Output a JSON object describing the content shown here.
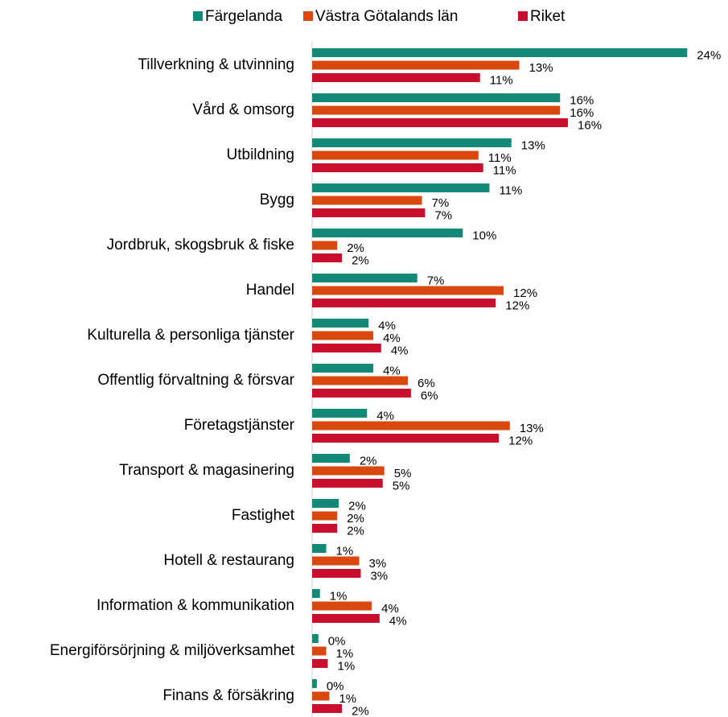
{
  "chart_data": {
    "type": "bar",
    "orientation": "horizontal",
    "categories": [
      "Tillverkning & utvinning",
      "Vård & omsorg",
      "Utbildning",
      "Bygg",
      "Jordbruk, skogsbruk & fiske",
      "Handel",
      "Kulturella & personliga tjänster",
      "Offentlig förvaltning & försvar",
      "Företagstjänster",
      "Transport & magasinering",
      "Fastighet",
      "Hotell & restaurang",
      "Information & kommunikation",
      "Energiförsörjning & miljöverksamhet",
      "Finans & försäkring"
    ],
    "series": [
      {
        "name": "Färgelanda",
        "color": "#138a77",
        "values": [
          23.9,
          15.8,
          12.7,
          11.3,
          9.6,
          6.7,
          3.6,
          3.9,
          3.5,
          2.4,
          1.7,
          0.9,
          0.5,
          0.4,
          0.3
        ],
        "value_labels": [
          "24%",
          "16%",
          "13%",
          "11%",
          "10%",
          "7%",
          "4%",
          "4%",
          "4%",
          "2%",
          "2%",
          "1%",
          "1%",
          "0%",
          "0%"
        ]
      },
      {
        "name": "Västra Götalands län",
        "color": "#d9480f",
        "values": [
          13.2,
          15.8,
          10.6,
          7.0,
          1.6,
          12.2,
          3.9,
          6.1,
          12.6,
          4.6,
          1.6,
          3.0,
          3.8,
          0.9,
          1.1
        ],
        "value_labels": [
          "13%",
          "16%",
          "11%",
          "7%",
          "2%",
          "12%",
          "4%",
          "6%",
          "13%",
          "5%",
          "2%",
          "3%",
          "4%",
          "1%",
          "1%"
        ]
      },
      {
        "name": "Riket",
        "color": "#c8102e",
        "values": [
          10.7,
          16.3,
          10.9,
          7.2,
          1.9,
          11.7,
          4.4,
          6.3,
          11.9,
          4.5,
          1.6,
          3.1,
          4.3,
          1.0,
          1.9
        ],
        "value_labels": [
          "11%",
          "16%",
          "11%",
          "7%",
          "2%",
          "12%",
          "4%",
          "6%",
          "12%",
          "5%",
          "2%",
          "3%",
          "4%",
          "1%",
          "2%"
        ]
      }
    ],
    "xlim": [
      0,
      24.5
    ],
    "legend": "top"
  }
}
